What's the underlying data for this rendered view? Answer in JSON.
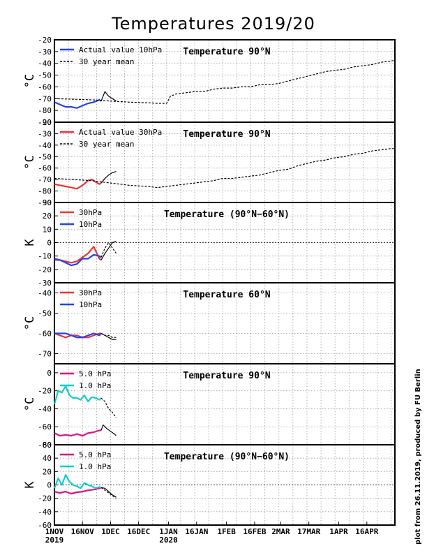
{
  "title": "Temperatures 2019/20",
  "credit": "plot from 26.11.2019, produced by FU Berlin",
  "x_ticks": [
    {
      "day": 0,
      "label": "1NOV",
      "sub": "2019"
    },
    {
      "day": 15,
      "label": "16NOV"
    },
    {
      "day": 30,
      "label": "1DEC"
    },
    {
      "day": 45,
      "label": "16DEC"
    },
    {
      "day": 61,
      "label": "1JAN",
      "sub": "2020"
    },
    {
      "day": 76,
      "label": "16JAN"
    },
    {
      "day": 92,
      "label": "1FEB"
    },
    {
      "day": 107,
      "label": "16FEB"
    },
    {
      "day": 121,
      "label": "2MAR"
    },
    {
      "day": 136,
      "label": "17MAR"
    },
    {
      "day": 152,
      "label": "1APR"
    },
    {
      "day": 167,
      "label": "16APR"
    }
  ],
  "chart_data": [
    {
      "type": "line",
      "title": "Temperature 90°N",
      "ylabel": "°C",
      "ylim": [
        -90,
        -20
      ],
      "yticks": [
        -90,
        -80,
        -70,
        -60,
        -50,
        -40,
        -30,
        -20
      ],
      "zero_line": false,
      "series": [
        {
          "name": "Actual value 10hPa",
          "color": "#2244ee",
          "dash": false,
          "x": [
            0,
            3,
            6,
            9,
            12,
            15,
            18,
            21,
            24,
            25
          ],
          "y": [
            -73,
            -75,
            -77,
            -77,
            -78,
            -76,
            -74,
            -73,
            -71,
            -72
          ]
        },
        {
          "name": "Actual value 10hPa (forecast)",
          "legend": false,
          "color": "#000000",
          "dash": false,
          "x": [
            25,
            27,
            29,
            31,
            33
          ],
          "y": [
            -72,
            -64,
            -68,
            -70,
            -72
          ]
        },
        {
          "name": "30 year mean",
          "color": "#000000",
          "dash": true,
          "x": [
            0,
            10,
            20,
            30,
            40,
            50,
            55,
            60,
            62,
            65,
            70,
            75,
            80,
            85,
            90,
            95,
            100,
            105,
            110,
            115,
            120,
            125,
            130,
            135,
            140,
            145,
            150,
            155,
            160,
            165,
            170,
            175,
            180,
            182
          ],
          "y": [
            -70,
            -70.5,
            -71,
            -72,
            -73,
            -73.5,
            -74,
            -74,
            -68,
            -66,
            -65,
            -64,
            -64,
            -62,
            -61,
            -61,
            -60,
            -60,
            -58,
            -58,
            -57,
            -55,
            -53,
            -51,
            -49,
            -47,
            -46,
            -45,
            -43,
            -42,
            -41,
            -39,
            -38,
            -37.5
          ]
        }
      ]
    },
    {
      "type": "line",
      "title": "Temperature 90°N",
      "ylabel": "°C",
      "ylim": [
        -90,
        -20
      ],
      "yticks": [
        -90,
        -80,
        -70,
        -60,
        -50,
        -40,
        -30,
        -20
      ],
      "zero_line": false,
      "series": [
        {
          "name": "Actual value 30hPa",
          "color": "#ee3333",
          "dash": false,
          "x": [
            0,
            3,
            6,
            9,
            12,
            15,
            18,
            20,
            22,
            24,
            25
          ],
          "y": [
            -74,
            -75,
            -76,
            -77,
            -78,
            -75,
            -71,
            -70,
            -72,
            -74,
            -73
          ]
        },
        {
          "name": "Actual value 30hPa (forecast)",
          "legend": false,
          "color": "#000000",
          "dash": false,
          "x": [
            25,
            27,
            29,
            31,
            33
          ],
          "y": [
            -73,
            -69,
            -66,
            -64,
            -63
          ]
        },
        {
          "name": "30 year mean",
          "color": "#000000",
          "dash": true,
          "x": [
            0,
            10,
            20,
            30,
            40,
            50,
            55,
            60,
            65,
            70,
            75,
            80,
            85,
            90,
            95,
            100,
            105,
            110,
            115,
            120,
            125,
            130,
            135,
            140,
            145,
            150,
            155,
            160,
            165,
            170,
            175,
            180,
            182
          ],
          "y": [
            -69,
            -70,
            -71,
            -73,
            -75,
            -76,
            -77,
            -76,
            -75,
            -74,
            -73,
            -72,
            -71,
            -69,
            -69,
            -68,
            -67,
            -66,
            -64,
            -62,
            -61,
            -58,
            -56,
            -54,
            -53,
            -51,
            -50,
            -48,
            -47,
            -45,
            -44,
            -43,
            -43
          ]
        }
      ]
    },
    {
      "type": "line",
      "title": "Temperature (90°N−60°N)",
      "ylabel": "K",
      "ylim": [
        -30,
        30
      ],
      "yticks": [
        -30,
        -20,
        -10,
        0,
        10,
        20,
        30
      ],
      "zero_line": true,
      "series": [
        {
          "name": "30hPa",
          "color": "#ee3333",
          "dash": false,
          "x": [
            0,
            3,
            6,
            9,
            12,
            15,
            18,
            21,
            24,
            25
          ],
          "y": [
            -13,
            -13,
            -14,
            -15,
            -14,
            -11,
            -8,
            -3,
            -12,
            -13
          ]
        },
        {
          "name": "10hPa",
          "color": "#2244ee",
          "dash": false,
          "x": [
            0,
            3,
            6,
            9,
            12,
            15,
            18,
            21,
            24,
            25
          ],
          "y": [
            -12,
            -13,
            -15,
            -17,
            -16,
            -12,
            -12,
            -9,
            -10,
            -11
          ]
        },
        {
          "name": "30hPa forecast",
          "legend": false,
          "color": "#000000",
          "dash": false,
          "x": [
            25,
            27,
            29,
            31,
            33
          ],
          "y": [
            -13,
            -8,
            -4,
            0,
            1
          ]
        },
        {
          "name": "10hPa forecast",
          "legend": false,
          "color": "#000000",
          "dash": true,
          "x": [
            25,
            27,
            29,
            31,
            33
          ],
          "y": [
            -11,
            -4,
            0,
            -4,
            -8
          ]
        }
      ]
    },
    {
      "type": "line",
      "title": "Temperature 60°N",
      "ylabel": "°C",
      "ylim": [
        -75,
        -35
      ],
      "yticks": [
        -70,
        -60,
        -50,
        -40
      ],
      "zero_line": false,
      "series": [
        {
          "name": "30hPa",
          "color": "#ee3333",
          "dash": false,
          "x": [
            0,
            3,
            6,
            9,
            12,
            15,
            18,
            21,
            24,
            25
          ],
          "y": [
            -60,
            -61,
            -62,
            -61,
            -61,
            -62,
            -62,
            -61,
            -60,
            -60
          ]
        },
        {
          "name": "10hPa",
          "color": "#2244ee",
          "dash": false,
          "x": [
            0,
            3,
            6,
            9,
            12,
            15,
            18,
            21,
            24,
            25
          ],
          "y": [
            -60,
            -60,
            -60,
            -61,
            -62,
            -62,
            -61,
            -60,
            -61,
            -60
          ]
        },
        {
          "name": "30hPa forecast",
          "legend": false,
          "color": "#000000",
          "dash": false,
          "x": [
            25,
            27,
            29,
            31,
            33
          ],
          "y": [
            -60,
            -61,
            -62,
            -63,
            -63
          ]
        },
        {
          "name": "10hPa forecast",
          "legend": false,
          "color": "#000000",
          "dash": true,
          "x": [
            25,
            27,
            29,
            31,
            33
          ],
          "y": [
            -60,
            -61,
            -61,
            -62,
            -62
          ]
        }
      ]
    },
    {
      "type": "line",
      "title": "Temperature 90°N",
      "ylabel": "°C",
      "ylim": [
        -80,
        10
      ],
      "yticks": [
        -80,
        -60,
        -40,
        -20,
        0
      ],
      "zero_line": false,
      "series": [
        {
          "name": "5.0 hPa",
          "color": "#dd1188",
          "dash": false,
          "x": [
            0,
            3,
            6,
            9,
            12,
            15,
            18,
            21,
            24,
            25
          ],
          "y": [
            -67,
            -70,
            -69,
            -70,
            -68,
            -70,
            -67,
            -66,
            -64,
            -64
          ]
        },
        {
          "name": "1.0 hPa",
          "color": "#11cccc",
          "dash": false,
          "x": [
            0,
            2,
            4,
            6,
            8,
            10,
            12,
            14,
            16,
            18,
            20,
            22,
            24,
            25
          ],
          "y": [
            -35,
            -20,
            -22,
            -15,
            -25,
            -28,
            -28,
            -30,
            -25,
            -32,
            -27,
            -28,
            -30,
            -28
          ]
        },
        {
          "name": "5.0 hPa forecast",
          "legend": false,
          "color": "#000000",
          "dash": false,
          "x": [
            25,
            26,
            28,
            30,
            32,
            33
          ],
          "y": [
            -64,
            -58,
            -62,
            -65,
            -68,
            -70
          ]
        },
        {
          "name": "1.0 hPa forecast",
          "legend": false,
          "color": "#000000",
          "dash": true,
          "x": [
            25,
            27,
            29,
            31,
            33
          ],
          "y": [
            -28,
            -32,
            -40,
            -44,
            -50
          ]
        }
      ]
    },
    {
      "type": "line",
      "title": "Temperature (90°N−60°N)",
      "ylabel": "K",
      "ylim": [
        -60,
        60
      ],
      "yticks": [
        -60,
        -40,
        -20,
        0,
        20,
        40,
        60
      ],
      "zero_line": true,
      "series": [
        {
          "name": "5.0 hPa",
          "color": "#dd1188",
          "dash": false,
          "x": [
            0,
            3,
            6,
            9,
            12,
            15,
            18,
            21,
            24,
            25
          ],
          "y": [
            -10,
            -12,
            -10,
            -13,
            -11,
            -10,
            -8,
            -7,
            -5,
            -4
          ]
        },
        {
          "name": "1.0 hPa",
          "color": "#11cccc",
          "dash": false,
          "x": [
            0,
            2,
            4,
            6,
            8,
            10,
            12,
            14,
            16,
            18,
            20,
            22,
            24,
            25
          ],
          "y": [
            -5,
            10,
            0,
            15,
            5,
            0,
            -2,
            -5,
            3,
            0,
            -2,
            -5,
            -3,
            -4
          ]
        },
        {
          "name": "5.0 hPa forecast",
          "legend": false,
          "color": "#000000",
          "dash": false,
          "x": [
            25,
            27,
            29,
            31,
            33
          ],
          "y": [
            -4,
            -5,
            -10,
            -15,
            -18
          ]
        },
        {
          "name": "1.0 hPa forecast",
          "legend": false,
          "color": "#000000",
          "dash": true,
          "x": [
            25,
            27,
            29,
            31,
            33
          ],
          "y": [
            -4,
            -8,
            -12,
            -16,
            -20
          ]
        }
      ]
    }
  ]
}
